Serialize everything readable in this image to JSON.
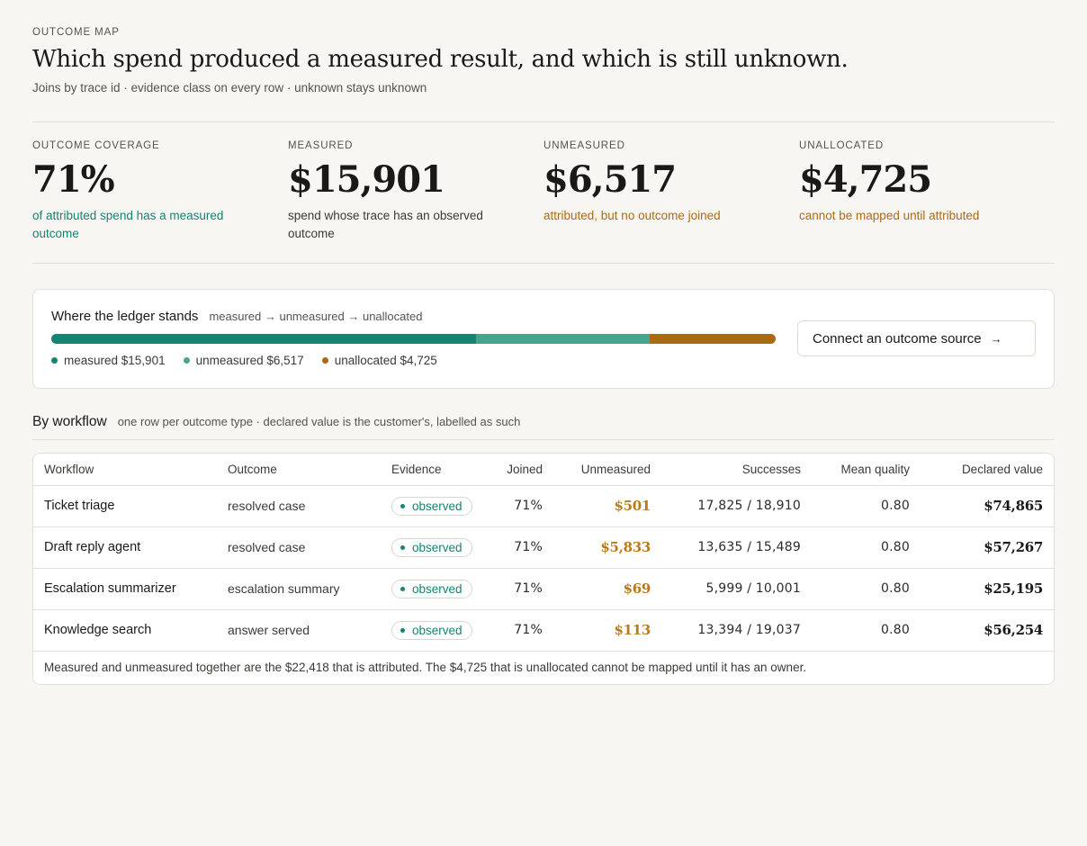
{
  "header": {
    "eyebrow": "OUTCOME MAP",
    "title": "Which spend produced a measured result, and which is still unknown.",
    "subtitle": "Joins by trace id · evidence class on every row · unknown stays unknown"
  },
  "kpis": [
    {
      "label": "OUTCOME COVERAGE",
      "value": "71%",
      "note": "of attributed spend has a measured outcome"
    },
    {
      "label": "MEASURED",
      "value": "$15,901",
      "note": "spend whose trace has an observed outcome"
    },
    {
      "label": "UNMEASURED",
      "value": "$6,517",
      "note": "attributed, but no outcome joined"
    },
    {
      "label": "UNALLOCATED",
      "value": "$4,725",
      "note": "cannot be mapped until attributed"
    }
  ],
  "ledger": {
    "title": "Where the ledger stands",
    "flow": "measured → unmeasured → unallocated",
    "segments": [
      {
        "key": "measured",
        "amount": 15901,
        "color": "#138570"
      },
      {
        "key": "unmeasured",
        "amount": 6517,
        "color": "#44a58d"
      },
      {
        "key": "unallocated",
        "amount": 4725,
        "color": "#a96a11"
      }
    ],
    "legend": [
      {
        "text": "measured $15,901",
        "color": "#138570"
      },
      {
        "text": "unmeasured $6,517",
        "color": "#44a58d"
      },
      {
        "text": "unallocated $4,725",
        "color": "#a96a11"
      }
    ],
    "connect_label": "Connect an outcome source",
    "connect_arrow": "→"
  },
  "workflow": {
    "title": "By workflow",
    "desc": "one row per outcome type · declared value is the customer's, labelled as such",
    "columns": [
      "Workflow",
      "Outcome",
      "Evidence",
      "Joined",
      "Unmeasured",
      "Successes",
      "Mean quality",
      "Declared value"
    ],
    "rows": [
      {
        "workflow": "Ticket triage",
        "outcome": "resolved case",
        "evidence": "observed",
        "joined": "71%",
        "unmeasured": "$501",
        "successes": "17,825 / 18,910",
        "quality": "0.80",
        "declared": "$74,865"
      },
      {
        "workflow": "Draft reply agent",
        "outcome": "resolved case",
        "evidence": "observed",
        "joined": "71%",
        "unmeasured": "$5,833",
        "successes": "13,635 / 15,489",
        "quality": "0.80",
        "declared": "$57,267"
      },
      {
        "workflow": "Escalation summarizer",
        "outcome": "escalation summary",
        "evidence": "observed",
        "joined": "71%",
        "unmeasured": "$69",
        "successes": "5,999 / 10,001",
        "quality": "0.80",
        "declared": "$25,195"
      },
      {
        "workflow": "Knowledge search",
        "outcome": "answer served",
        "evidence": "observed",
        "joined": "71%",
        "unmeasured": "$113",
        "successes": "13,394 / 19,037",
        "quality": "0.80",
        "declared": "$56,254"
      }
    ],
    "footnote": "Measured and unmeasured together are the $22,418 that is attributed. The $4,725 that is unallocated cannot be mapped until it has an owner."
  }
}
